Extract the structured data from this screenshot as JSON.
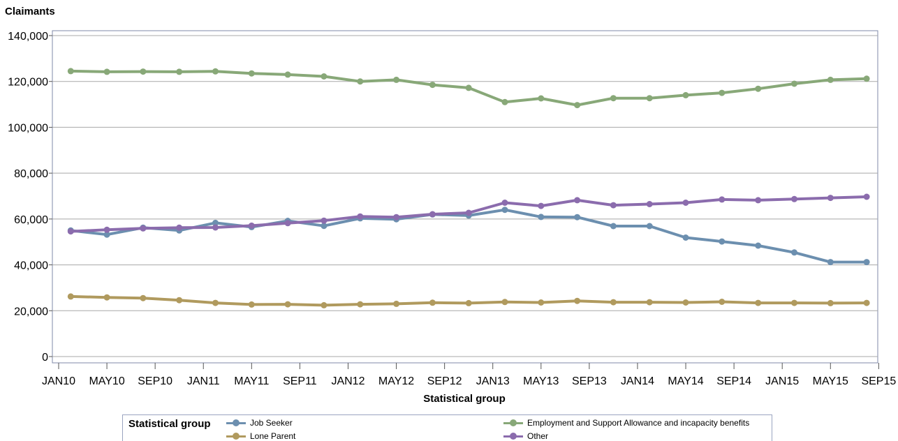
{
  "chart_data": {
    "type": "line",
    "ylabel": "Claimants",
    "xlabel": "Statistical group",
    "ylim": [
      0,
      140000
    ],
    "yticks": [
      0,
      20000,
      40000,
      60000,
      80000,
      100000,
      120000,
      140000
    ],
    "ytick_labels": [
      "0",
      "20,000",
      "40,000",
      "60,000",
      "80,000",
      "100,000",
      "120,000",
      "140,000"
    ],
    "xtick_labels": [
      "JAN10",
      "MAY10",
      "SEP10",
      "JAN11",
      "MAY11",
      "SEP11",
      "JAN12",
      "MAY12",
      "SEP12",
      "JAN13",
      "MAY13",
      "SEP13",
      "JAN14",
      "MAY14",
      "SEP14",
      "JAN15",
      "MAY15",
      "SEP15"
    ],
    "x": [
      "FEB10",
      "MAY10",
      "AUG10",
      "NOV10",
      "FEB11",
      "MAY11",
      "AUG11",
      "NOV11",
      "FEB12",
      "MAY12",
      "AUG12",
      "NOV12",
      "FEB13",
      "MAY13",
      "AUG13",
      "NOV13",
      "FEB14",
      "MAY14",
      "AUG14",
      "NOV14",
      "FEB15",
      "MAY15",
      "AUG15"
    ],
    "grid": true,
    "legend_title": "Statistical group",
    "legend_position": "bottom",
    "series": [
      {
        "name": "Job Seeker",
        "color": "#6c8faf",
        "values": [
          55000,
          53200,
          56200,
          55000,
          58300,
          56500,
          59200,
          57000,
          60300,
          59900,
          62000,
          61500,
          64000,
          60900,
          60800,
          56900,
          56900,
          51900,
          50200,
          48400,
          45400,
          41200,
          41200
        ]
      },
      {
        "name": "Employment and Support Allowance and incapacity benefits",
        "color": "#88a878",
        "values": [
          124500,
          124200,
          124300,
          124200,
          124400,
          123500,
          123000,
          122200,
          120000,
          120700,
          118500,
          117200,
          111000,
          112600,
          109700,
          112700,
          112700,
          114000,
          115000,
          116800,
          119000,
          120700,
          121200
        ]
      },
      {
        "name": "Lone Parent",
        "color": "#b09a5e",
        "values": [
          26200,
          25800,
          25500,
          24600,
          23400,
          22700,
          22800,
          22400,
          22800,
          23000,
          23500,
          23300,
          23800,
          23600,
          24300,
          23700,
          23700,
          23600,
          23900,
          23400,
          23400,
          23300,
          23400
        ]
      },
      {
        "name": "Other",
        "color": "#8b6cad",
        "values": [
          54600,
          55300,
          55900,
          56200,
          56300,
          57100,
          58200,
          59300,
          61100,
          60800,
          62100,
          62700,
          67100,
          65700,
          68200,
          66000,
          66500,
          67100,
          68500,
          68200,
          68700,
          69200,
          69700
        ]
      }
    ]
  }
}
